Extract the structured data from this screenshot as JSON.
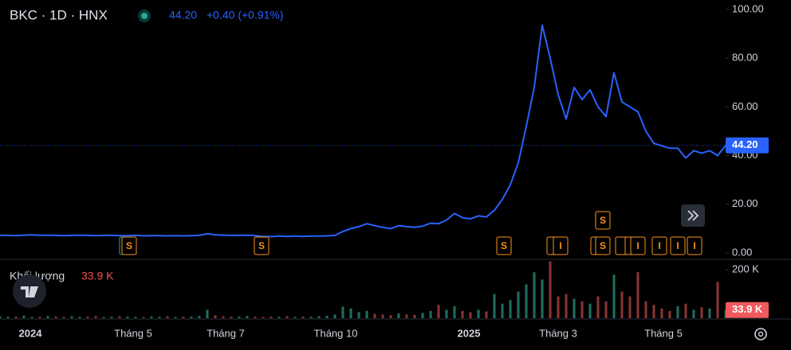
{
  "chart_data": {
    "type": "line",
    "title": "BKC · 1D · HNX",
    "last": {
      "value": 44.2,
      "label": "44.20"
    },
    "change": "+0.40 (+0.91%)",
    "xlim": [
      0,
      91
    ],
    "xticks": [
      {
        "value": 3.8,
        "label": "2024"
      },
      {
        "value": 16.7,
        "label": "Tháng 5"
      },
      {
        "value": 28.3,
        "label": "Tháng 7"
      },
      {
        "value": 42.1,
        "label": "Tháng 10"
      },
      {
        "value": 58.8,
        "label": "2025"
      },
      {
        "value": 70,
        "label": "Tháng 3"
      },
      {
        "value": 83.2,
        "label": "Tháng 5"
      }
    ],
    "ylim": [
      -2.3,
      103.9
    ],
    "yticks": [
      {
        "value": 0,
        "label": "0.00"
      },
      {
        "value": 20,
        "label": "20.00"
      },
      {
        "value": 40,
        "label": "40.00"
      },
      {
        "value": 60,
        "label": "60.00"
      },
      {
        "value": 80,
        "label": "80.00"
      },
      {
        "value": 100,
        "label": "100.00"
      }
    ],
    "series": [
      {
        "color": "#2962ff",
        "values": [
          7.2,
          7.2,
          7.1,
          7.3,
          7.4,
          7.2,
          7.3,
          7.2,
          7.1,
          7.2,
          7.3,
          7.2,
          7.1,
          7.2,
          7.2,
          7.1,
          7.1,
          7.2,
          7.0,
          7.1,
          7.1,
          7.0,
          7.1,
          7.0,
          7.1,
          7.2,
          7.9,
          7.4,
          7.3,
          7.2,
          7.2,
          7.3,
          7.1,
          6.8,
          6.7,
          6.9,
          6.8,
          6.9,
          6.8,
          6.9,
          6.9,
          7.0,
          7.2,
          8.8,
          10.0,
          10.8,
          12.0,
          11.2,
          10.5,
          10.0,
          11.2,
          10.8,
          10.5,
          11.0,
          12.2,
          12.0,
          13.5,
          16.2,
          14.5,
          14.0,
          15.2,
          14.8,
          17.5,
          22.0,
          28.0,
          37.0,
          52.0,
          68.0,
          93.5,
          80.0,
          65.0,
          55.0,
          68.0,
          63.0,
          67.0,
          60.0,
          56.0,
          74.0,
          62.0,
          60.0,
          58.0,
          50.0,
          45.0,
          44.0,
          43.0,
          43.0,
          39.0,
          42.0,
          41.0,
          42.0,
          40.0,
          44.2
        ]
      }
    ],
    "events": [
      {
        "x": 16.2,
        "label": "S"
      },
      {
        "x": 32.8,
        "label": "S"
      },
      {
        "x": 63.2,
        "label": "S"
      },
      {
        "x": 70.3,
        "label": "I"
      },
      {
        "x": 75.6,
        "label": "S"
      },
      {
        "x": 75.6,
        "label": "S"
      },
      {
        "x": 80.0,
        "label": "I"
      },
      {
        "x": 82.7,
        "label": "I"
      },
      {
        "x": 85.0,
        "label": "I"
      },
      {
        "x": 87.1,
        "label": "I"
      }
    ],
    "volume": {
      "title": "Khối lượng",
      "last": {
        "value": 33.9,
        "label": "33.9 K"
      },
      "up_color": "#1f6f61",
      "down_color": "#8c3434",
      "ylim": [
        0,
        240
      ],
      "yticks": [
        {
          "value": 200,
          "label": "200 K"
        }
      ],
      "values": [
        8,
        6,
        7,
        10,
        5,
        6,
        9,
        7,
        5,
        8,
        6,
        7,
        9,
        5,
        6,
        8,
        7,
        6,
        5,
        7,
        6,
        8,
        5,
        6,
        7,
        9,
        35,
        12,
        8,
        6,
        7,
        9,
        6,
        5,
        7,
        6,
        8,
        5,
        7,
        6,
        8,
        10,
        15,
        48,
        40,
        25,
        30,
        18,
        15,
        12,
        20,
        15,
        14,
        22,
        30,
        55,
        35,
        50,
        30,
        25,
        35,
        28,
        100,
        60,
        75,
        110,
        140,
        190,
        160,
        235,
        90,
        100,
        80,
        70,
        60,
        90,
        70,
        180,
        110,
        90,
        190,
        70,
        55,
        40,
        30,
        50,
        60,
        35,
        45,
        40,
        150,
        33.9
      ]
    }
  }
}
